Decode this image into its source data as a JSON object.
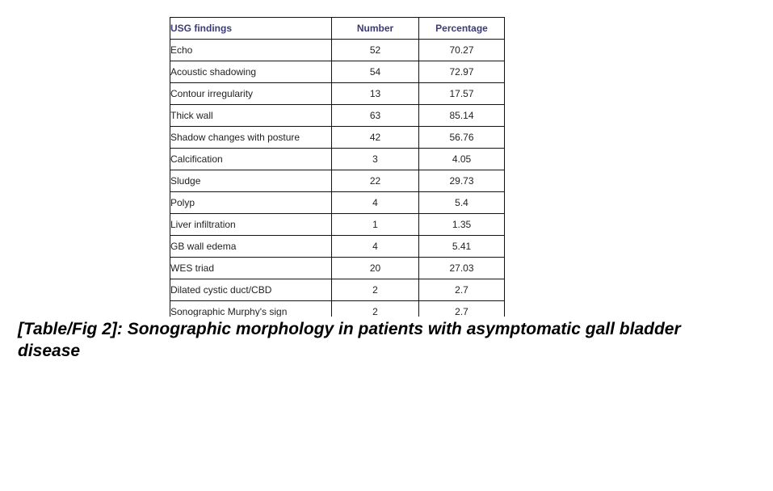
{
  "table": {
    "header": [
      "USG findings",
      "Number",
      "Percentage"
    ],
    "rows": [
      [
        "Echo",
        "52",
        "70.27"
      ],
      [
        "Acoustic shadowing",
        "54",
        "72.97"
      ],
      [
        "Contour irregularity",
        "13",
        "17.57"
      ],
      [
        "Thick wall",
        "63",
        "85.14"
      ],
      [
        "Shadow changes with posture",
        "42",
        "56.76"
      ],
      [
        "Calcification",
        "3",
        "4.05"
      ],
      [
        "Sludge",
        "22",
        "29.73"
      ],
      [
        "Polyp",
        "4",
        "5.4"
      ],
      [
        "Liver infiltration",
        "1",
        "1.35"
      ],
      [
        "GB wall edema",
        "4",
        "5.41"
      ],
      [
        "WES triad",
        "20",
        "27.03"
      ],
      [
        "Dilated cystic duct/CBD",
        "2",
        "2.7"
      ],
      [
        "Sonographic Murphy's sign",
        "2",
        "2.7"
      ]
    ]
  },
  "caption": "[Table/Fig 2]: Sonographic morphology in patients with asymptomatic gall bladder disease"
}
